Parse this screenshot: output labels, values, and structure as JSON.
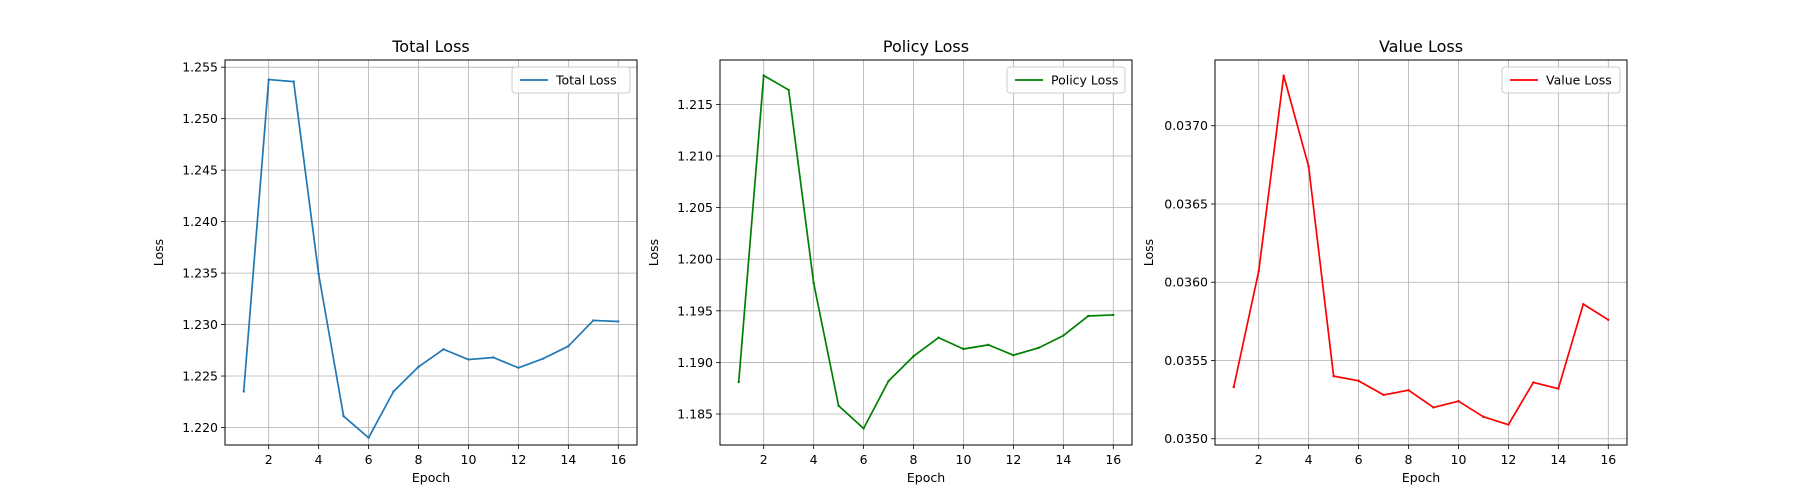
{
  "chart_data": [
    {
      "type": "line",
      "title": "Total Loss",
      "xlabel": "Epoch",
      "ylabel": "Loss",
      "grid": true,
      "legend_position": "top-right",
      "xlim": [
        0.25,
        16.75
      ],
      "ylim": [
        1.2183,
        1.2557
      ],
      "xticks": [
        2,
        4,
        6,
        8,
        10,
        12,
        14,
        16
      ],
      "yticks": [
        1.22,
        1.225,
        1.23,
        1.235,
        1.24,
        1.245,
        1.25,
        1.255
      ],
      "ytick_labels": [
        "1.220",
        "1.225",
        "1.230",
        "1.235",
        "1.240",
        "1.245",
        "1.250",
        "1.255"
      ],
      "series": [
        {
          "name": "Total Loss",
          "color": "#1f77b4",
          "x": [
            1,
            2,
            3,
            4,
            5,
            6,
            7,
            8,
            9,
            10,
            11,
            12,
            13,
            14,
            15,
            16
          ],
          "values": [
            1.2235,
            1.2538,
            1.2536,
            1.2349,
            1.2211,
            1.219,
            1.2235,
            1.2259,
            1.2276,
            1.2266,
            1.2268,
            1.2258,
            1.2267,
            1.2279,
            1.2304,
            1.2303
          ]
        }
      ]
    },
    {
      "type": "line",
      "title": "Policy Loss",
      "xlabel": "Epoch",
      "ylabel": "Loss",
      "grid": true,
      "legend_position": "top-right",
      "xlim": [
        0.25,
        16.75
      ],
      "ylim": [
        1.182,
        1.2193
      ],
      "xticks": [
        2,
        4,
        6,
        8,
        10,
        12,
        14,
        16
      ],
      "yticks": [
        1.185,
        1.19,
        1.195,
        1.2,
        1.205,
        1.21,
        1.215
      ],
      "ytick_labels": [
        "1.185",
        "1.190",
        "1.195",
        "1.200",
        "1.205",
        "1.210",
        "1.215"
      ],
      "series": [
        {
          "name": "Policy Loss",
          "color": "#008000",
          "x": [
            1,
            2,
            3,
            4,
            5,
            6,
            7,
            8,
            9,
            10,
            11,
            12,
            13,
            14,
            15,
            16
          ],
          "values": [
            1.1881,
            1.2178,
            1.2164,
            1.1977,
            1.1858,
            1.1836,
            1.1882,
            1.1906,
            1.1924,
            1.1913,
            1.1917,
            1.1907,
            1.1914,
            1.1926,
            1.1945,
            1.1946
          ]
        }
      ]
    },
    {
      "type": "line",
      "title": "Value Loss",
      "xlabel": "Epoch",
      "ylabel": "Loss",
      "grid": true,
      "legend_position": "top-right",
      "xlim": [
        0.25,
        16.75
      ],
      "ylim": [
        0.03496,
        0.03742
      ],
      "xticks": [
        2,
        4,
        6,
        8,
        10,
        12,
        14,
        16
      ],
      "yticks": [
        0.035,
        0.0355,
        0.036,
        0.0365,
        0.037
      ],
      "ytick_labels": [
        "0.0350",
        "0.0355",
        "0.0360",
        "0.0365",
        "0.0370"
      ],
      "series": [
        {
          "name": "Value Loss",
          "color": "#ff0000",
          "x": [
            1,
            2,
            3,
            4,
            5,
            6,
            7,
            8,
            9,
            10,
            11,
            12,
            13,
            14,
            15,
            16
          ],
          "values": [
            0.03533,
            0.03607,
            0.03732,
            0.03674,
            0.0354,
            0.03537,
            0.03528,
            0.03531,
            0.0352,
            0.03524,
            0.03514,
            0.03509,
            0.03536,
            0.03532,
            0.03586,
            0.03576
          ]
        }
      ]
    }
  ]
}
